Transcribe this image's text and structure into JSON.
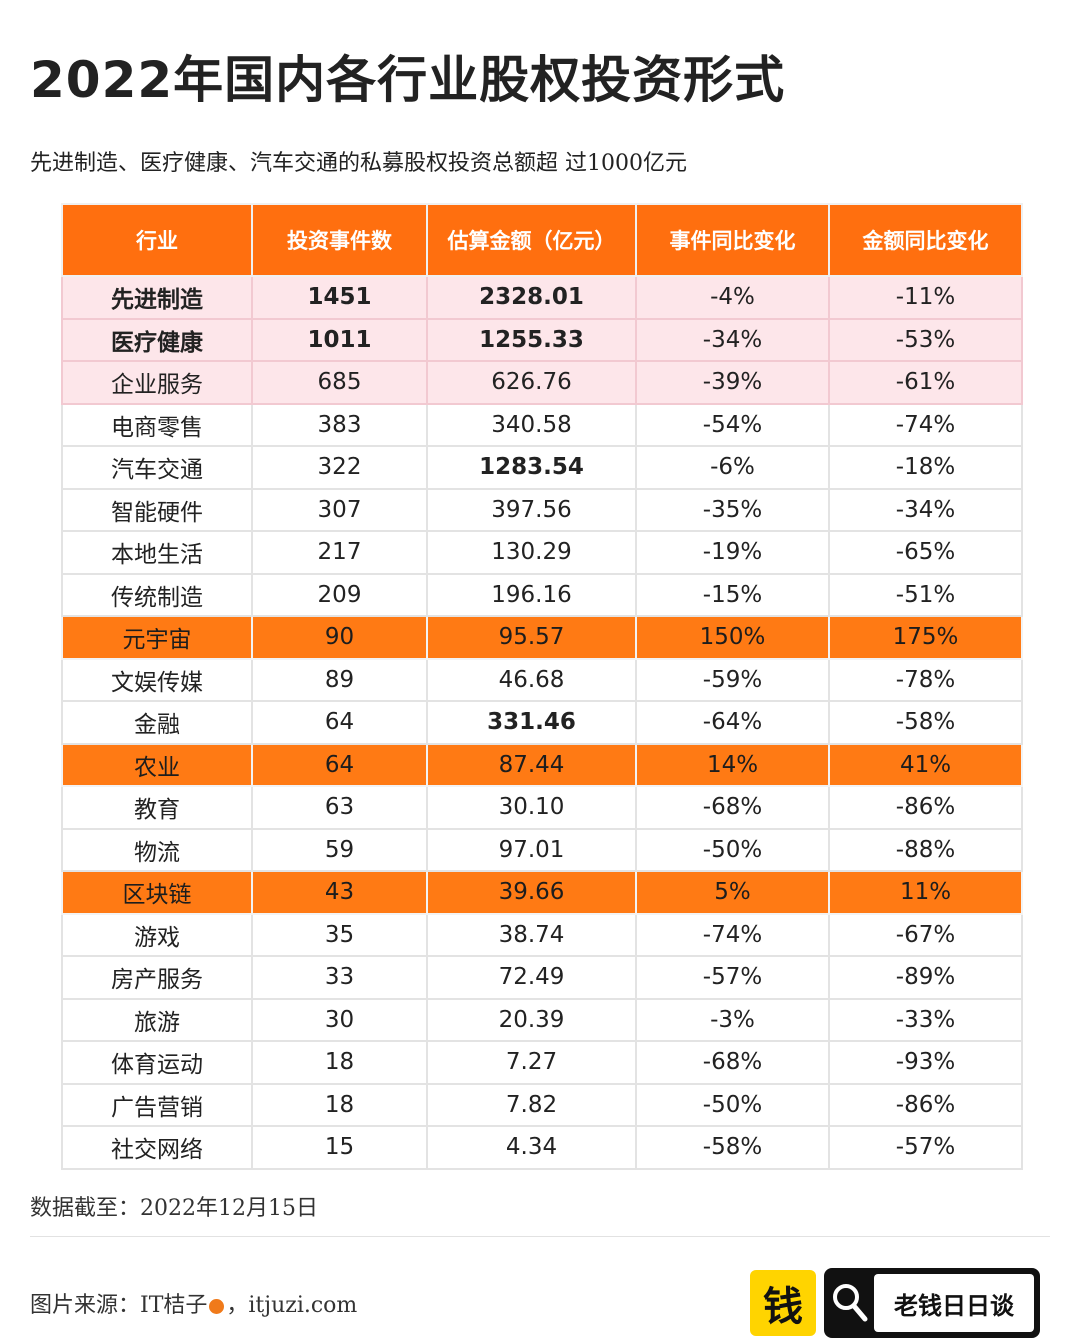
{
  "title": "2022年国内各行业股权投资形式",
  "subtitle": "先进制造、医疗健康、汽车交通的私募股权投资总额超 过1000亿元",
  "table": {
    "headers": [
      "行业",
      "投资事件数",
      "估算金额（亿元）",
      "事件同比变化",
      "金额同比变化"
    ],
    "rows": [
      {
        "industry": "先进制造",
        "events": "1451",
        "amount": "2328.01",
        "event_yoy": "-4%",
        "amount_yoy": "-11%",
        "style": "pink",
        "bold_industry": true,
        "bold_events": true,
        "bold_amount": true
      },
      {
        "industry": "医疗健康",
        "events": "1011",
        "amount": "1255.33",
        "event_yoy": "-34%",
        "amount_yoy": "-53%",
        "style": "pink",
        "bold_industry": true,
        "bold_events": true,
        "bold_amount": true
      },
      {
        "industry": "企业服务",
        "events": "685",
        "amount": "626.76",
        "event_yoy": "-39%",
        "amount_yoy": "-61%",
        "style": "pink"
      },
      {
        "industry": "电商零售",
        "events": "383",
        "amount": "340.58",
        "event_yoy": "-54%",
        "amount_yoy": "-74%"
      },
      {
        "industry": "汽车交通",
        "events": "322",
        "amount": "1283.54",
        "event_yoy": "-6%",
        "amount_yoy": "-18%",
        "bold_amount": true
      },
      {
        "industry": "智能硬件",
        "events": "307",
        "amount": "397.56",
        "event_yoy": "-35%",
        "amount_yoy": "-34%"
      },
      {
        "industry": "本地生活",
        "events": "217",
        "amount": "130.29",
        "event_yoy": "-19%",
        "amount_yoy": "-65%"
      },
      {
        "industry": "传统制造",
        "events": "209",
        "amount": "196.16",
        "event_yoy": "-15%",
        "amount_yoy": "-51%"
      },
      {
        "industry": "元宇宙",
        "events": "90",
        "amount": "95.57",
        "event_yoy": "150%",
        "amount_yoy": "175%",
        "style": "orange"
      },
      {
        "industry": "文娱传媒",
        "events": "89",
        "amount": "46.68",
        "event_yoy": "-59%",
        "amount_yoy": "-78%"
      },
      {
        "industry": "金融",
        "events": "64",
        "amount": "331.46",
        "event_yoy": "-64%",
        "amount_yoy": "-58%",
        "bold_amount": true
      },
      {
        "industry": "农业",
        "events": "64",
        "amount": "87.44",
        "event_yoy": "14%",
        "amount_yoy": "41%",
        "style": "orange"
      },
      {
        "industry": "教育",
        "events": "63",
        "amount": "30.10",
        "event_yoy": "-68%",
        "amount_yoy": "-86%"
      },
      {
        "industry": "物流",
        "events": "59",
        "amount": "97.01",
        "event_yoy": "-50%",
        "amount_yoy": "-88%"
      },
      {
        "industry": "区块链",
        "events": "43",
        "amount": "39.66",
        "event_yoy": "5%",
        "amount_yoy": "11%",
        "style": "orange"
      },
      {
        "industry": "游戏",
        "events": "35",
        "amount": "38.74",
        "event_yoy": "-74%",
        "amount_yoy": "-67%"
      },
      {
        "industry": "房产服务",
        "events": "33",
        "amount": "72.49",
        "event_yoy": "-57%",
        "amount_yoy": "-89%"
      },
      {
        "industry": "旅游",
        "events": "30",
        "amount": "20.39",
        "event_yoy": "-3%",
        "amount_yoy": "-33%"
      },
      {
        "industry": "体育运动",
        "events": "18",
        "amount": "7.27",
        "event_yoy": "-68%",
        "amount_yoy": "-93%"
      },
      {
        "industry": "广告营销",
        "events": "18",
        "amount": "7.82",
        "event_yoy": "-50%",
        "amount_yoy": "-86%"
      },
      {
        "industry": "社交网络",
        "events": "15",
        "amount": "4.34",
        "event_yoy": "-58%",
        "amount_yoy": "-57%"
      }
    ]
  },
  "footer": {
    "cutoff": "数据截至：2022年12月15日",
    "source_prefix": "图片来源：IT桔子",
    "source_suffix": "，itjuzi.com",
    "logo_char": "钱",
    "badge_text": "老钱日日谈"
  },
  "colors": {
    "accent_orange": "#ff6f0f",
    "highlight_pink": "#fde6ea"
  }
}
